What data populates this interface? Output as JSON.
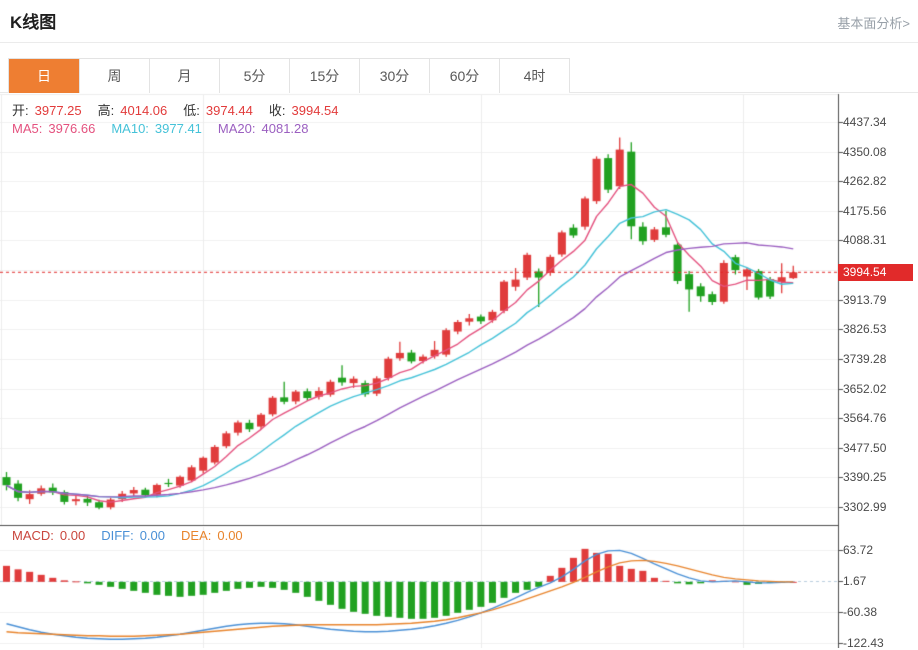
{
  "header": {
    "title": "K线图",
    "link": "基本面分析>"
  },
  "tabs": {
    "items": [
      "日",
      "周",
      "月",
      "5分",
      "15分",
      "30分",
      "60分",
      "4时"
    ],
    "active_index": 0
  },
  "legend": {
    "ohlc": [
      {
        "label": "开:",
        "value": "3977.25"
      },
      {
        "label": "高:",
        "value": "4014.06"
      },
      {
        "label": "低:",
        "value": "3974.44"
      },
      {
        "label": "收:",
        "value": "3994.54"
      }
    ],
    "ma": [
      {
        "label": "MA5:",
        "value": "3976.66",
        "color": "#e4527f"
      },
      {
        "label": "MA10:",
        "value": "3977.41",
        "color": "#45c2d8"
      },
      {
        "label": "MA20:",
        "value": "4081.28",
        "color": "#9b5fc0"
      }
    ],
    "macd": [
      {
        "label": "MACD:",
        "value": "0.00",
        "color": "#c9463d"
      },
      {
        "label": "DIFF:",
        "value": "0.00",
        "color": "#4a90d6"
      },
      {
        "label": "DEA:",
        "value": "0.00",
        "color": "#e8842c"
      }
    ]
  },
  "colors": {
    "up": "#e03c3c",
    "down": "#21a121",
    "ma5": "#e4527f",
    "ma10": "#45c2d8",
    "ma20": "#9b5fc0",
    "diff": "#4a90d6",
    "dea": "#e8842c",
    "tab_active": "#ee7e32",
    "price_tag_bg": "#e12a2a",
    "price_line": "#e12a2a",
    "axis": "#4d4d4d",
    "grid": "#f1f1f1",
    "vgrid": "#ededed",
    "zero_dash": "#b9cede",
    "ohlc_value": "#e23b3b",
    "ohlc_label": "#333333"
  },
  "chart_data": {
    "type": "candlestick+macd",
    "title": "K线图 (日K)",
    "price_axis_labels": [
      "4437.34",
      "4350.08",
      "4262.82",
      "4175.56",
      "4088.31",
      "3913.79",
      "3826.53",
      "3739.28",
      "3652.02",
      "3564.76",
      "3477.50",
      "3390.25",
      "3302.99"
    ],
    "hidden_grid_price": 4001.05,
    "current_price": 3994.54,
    "current_price_label": "3994.54",
    "ma_periods": [
      5,
      10,
      20
    ],
    "candles": [
      [
        3391,
        3406,
        3352,
        3367
      ],
      [
        3372,
        3382,
        3320,
        3330
      ],
      [
        3326,
        3352,
        3312,
        3341
      ],
      [
        3342,
        3366,
        3336,
        3358
      ],
      [
        3360,
        3372,
        3338,
        3346
      ],
      [
        3347,
        3352,
        3310,
        3318
      ],
      [
        3320,
        3340,
        3308,
        3326
      ],
      [
        3327,
        3336,
        3306,
        3316
      ],
      [
        3317,
        3324,
        3296,
        3301
      ],
      [
        3302,
        3330,
        3296,
        3325
      ],
      [
        3326,
        3350,
        3318,
        3342
      ],
      [
        3343,
        3362,
        3334,
        3353
      ],
      [
        3354,
        3360,
        3330,
        3338
      ],
      [
        3339,
        3372,
        3332,
        3368
      ],
      [
        3374,
        3386,
        3362,
        3371
      ],
      [
        3366,
        3396,
        3360,
        3392
      ],
      [
        3381,
        3426,
        3376,
        3420
      ],
      [
        3410,
        3452,
        3402,
        3448
      ],
      [
        3434,
        3486,
        3428,
        3480
      ],
      [
        3482,
        3526,
        3476,
        3520
      ],
      [
        3522,
        3558,
        3514,
        3552
      ],
      [
        3551,
        3560,
        3524,
        3532
      ],
      [
        3540,
        3580,
        3532,
        3575
      ],
      [
        3576,
        3630,
        3570,
        3625
      ],
      [
        3626,
        3672,
        3606,
        3613
      ],
      [
        3614,
        3648,
        3606,
        3643
      ],
      [
        3644,
        3652,
        3616,
        3624
      ],
      [
        3628,
        3656,
        3620,
        3645
      ],
      [
        3634,
        3678,
        3628,
        3672
      ],
      [
        3684,
        3721,
        3660,
        3670
      ],
      [
        3668,
        3688,
        3654,
        3681
      ],
      [
        3668,
        3676,
        3628,
        3635
      ],
      [
        3637,
        3688,
        3630,
        3682
      ],
      [
        3683,
        3746,
        3676,
        3740
      ],
      [
        3741,
        3790,
        3734,
        3757
      ],
      [
        3758,
        3766,
        3726,
        3732
      ],
      [
        3733,
        3752,
        3726,
        3746
      ],
      [
        3747,
        3792,
        3740,
        3766
      ],
      [
        3752,
        3830,
        3746,
        3824
      ],
      [
        3820,
        3854,
        3812,
        3848
      ],
      [
        3849,
        3872,
        3838,
        3859
      ],
      [
        3864,
        3870,
        3842,
        3850
      ],
      [
        3853,
        3884,
        3846,
        3878
      ],
      [
        3881,
        3972,
        3874,
        3967
      ],
      [
        3952,
        4007,
        3940,
        3973
      ],
      [
        3979,
        4052,
        3972,
        4046
      ],
      [
        3997,
        4006,
        3892,
        3979
      ],
      [
        3993,
        4046,
        3984,
        4040
      ],
      [
        4047,
        4118,
        4040,
        4112
      ],
      [
        4126,
        4136,
        4096,
        4103
      ],
      [
        4129,
        4218,
        4120,
        4212
      ],
      [
        4204,
        4336,
        4196,
        4329
      ],
      [
        4331,
        4342,
        4228,
        4238
      ],
      [
        4248,
        4392,
        4240,
        4356
      ],
      [
        4350,
        4378,
        4092,
        4130
      ],
      [
        4129,
        4142,
        4076,
        4086
      ],
      [
        4090,
        4128,
        4084,
        4121
      ],
      [
        4127,
        4176,
        4098,
        4105
      ],
      [
        4076,
        4082,
        3960,
        3969
      ],
      [
        3989,
        3998,
        3878,
        3944
      ],
      [
        3953,
        3962,
        3908,
        3924
      ],
      [
        3930,
        3938,
        3898,
        3907
      ],
      [
        3908,
        4030,
        3902,
        4022
      ],
      [
        4039,
        4046,
        3988,
        4001
      ],
      [
        3982,
        4008,
        3942,
        4003
      ],
      [
        3998,
        4004,
        3914,
        3920
      ],
      [
        3974,
        3981,
        3916,
        3923
      ],
      [
        3966,
        4021,
        3933,
        3980
      ],
      [
        3977.25,
        4014.06,
        3974.44,
        3994.54
      ]
    ],
    "macd": {
      "axis_labels": [
        "63.72",
        "1.67",
        "-60.38",
        "-122.43"
      ],
      "hist": [
        32,
        25,
        20,
        14,
        8,
        3,
        1,
        -3,
        -6,
        -10,
        -14,
        -18,
        -22,
        -26,
        -28,
        -30,
        -28,
        -26,
        -22,
        -18,
        -14,
        -12,
        -10,
        -12,
        -16,
        -22,
        -30,
        -38,
        -46,
        -54,
        -60,
        -64,
        -68,
        -70,
        -72,
        -74,
        -74,
        -72,
        -68,
        -62,
        -56,
        -50,
        -42,
        -32,
        -22,
        -16,
        -10,
        12,
        28,
        48,
        66,
        58,
        56,
        32,
        26,
        22,
        8,
        2,
        -3,
        -5,
        -3,
        3,
        2,
        1,
        -6,
        -4,
        -2,
        -1,
        0
      ],
      "diff": [
        -84,
        -90,
        -96,
        -101,
        -105,
        -108,
        -111,
        -113,
        -114,
        -115,
        -115,
        -114,
        -113,
        -111,
        -108,
        -105,
        -101,
        -97,
        -93,
        -89,
        -86,
        -84,
        -83,
        -83,
        -84,
        -86,
        -89,
        -92,
        -95,
        -97,
        -99,
        -100,
        -100,
        -99,
        -97,
        -95,
        -92,
        -88,
        -83,
        -77,
        -70,
        -62,
        -53,
        -43,
        -32,
        -21,
        -11,
        -2,
        10,
        25,
        42,
        55,
        62,
        63,
        57,
        47,
        36,
        26,
        16,
        8,
        2,
        0,
        1,
        2,
        0,
        -2,
        -2,
        -1,
        0
      ],
      "dea": [
        -100,
        -102,
        -103,
        -104,
        -105,
        -106,
        -107,
        -108,
        -108,
        -109,
        -109,
        -109,
        -108,
        -107,
        -106,
        -105,
        -103,
        -101,
        -99,
        -97,
        -95,
        -93,
        -91,
        -89,
        -88,
        -87,
        -86,
        -86,
        -86,
        -86,
        -86,
        -86,
        -86,
        -85,
        -84,
        -83,
        -81,
        -79,
        -76,
        -72,
        -67,
        -62,
        -56,
        -49,
        -42,
        -34,
        -26,
        -18,
        -10,
        -1,
        9,
        20,
        30,
        38,
        42,
        43,
        41,
        37,
        32,
        26,
        20,
        14,
        9,
        6,
        4,
        2,
        1,
        0,
        0
      ]
    }
  }
}
